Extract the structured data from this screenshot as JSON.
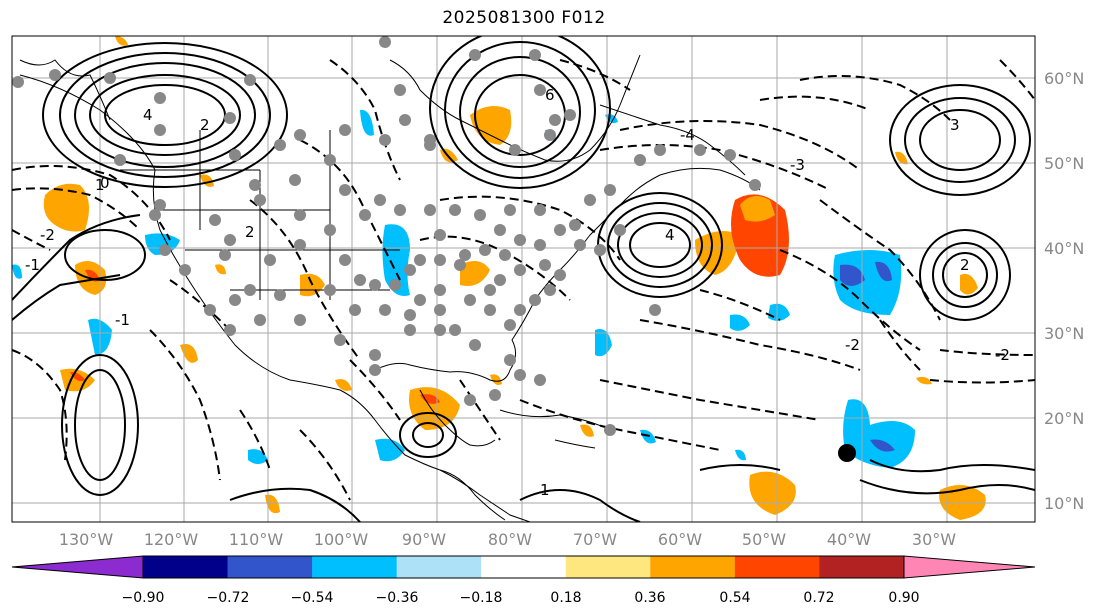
{
  "title": "2025081300 F012",
  "map": {
    "lat_labels": [
      "60°N",
      "50°N",
      "40°N",
      "30°N",
      "20°N",
      "10°N"
    ],
    "lon_labels": [
      "130°W",
      "120°W",
      "110°W",
      "100°W",
      "90°W",
      "80°W",
      "70°W",
      "60°W",
      "50°W",
      "40°W",
      "30°W"
    ],
    "contour_labels": [
      "4",
      "2",
      "1",
      "0",
      "-2",
      "-1",
      "6",
      "4",
      "3",
      "2",
      "1",
      "-2",
      "-1",
      "-3",
      "2",
      "-2",
      "-4"
    ],
    "station_marker_color": "#888888",
    "highlight_marker_color": "#000000"
  },
  "colorbar": {
    "ticks": [
      "−0.90",
      "−0.72",
      "−0.54",
      "−0.36",
      "−0.18",
      "0.18",
      "0.36",
      "0.54",
      "0.72",
      "0.90"
    ],
    "colors": [
      "#8B2BD0",
      "#00008B",
      "#3355CC",
      "#00BFFF",
      "#ADE1F8",
      "#FFFFFF",
      "#FFE77F",
      "#FFA500",
      "#FF4500",
      "#B22222",
      "#FF85B5"
    ]
  }
}
